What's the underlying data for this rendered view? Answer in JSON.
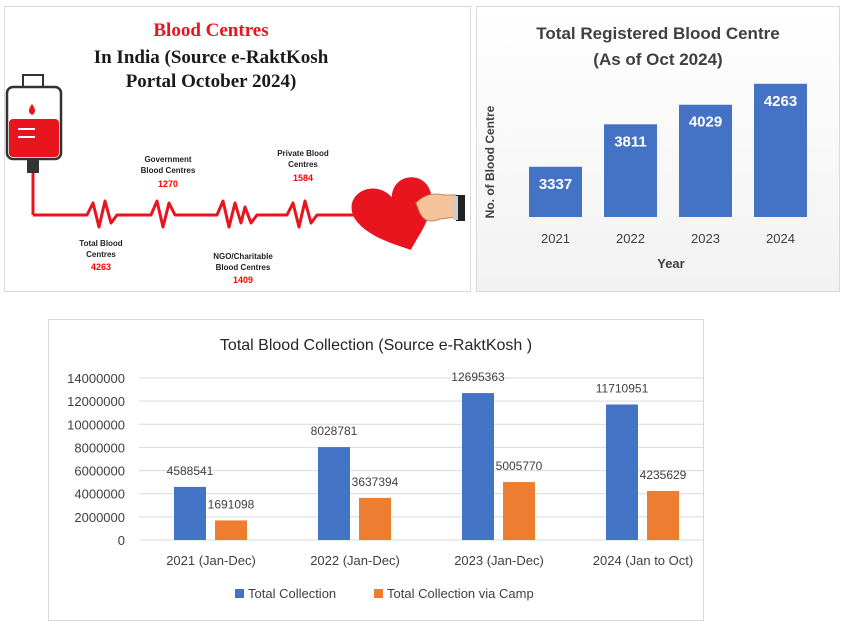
{
  "infographic": {
    "title_line1": "Blood Centres",
    "title_line2": "In India (Source e-RaktKosh",
    "title_line3": "Portal October 2024)",
    "items": [
      {
        "label_line1": "Total Blood",
        "label_line2": "Centres",
        "value": "4263"
      },
      {
        "label_line1": "Government",
        "label_line2": "Blood Centres",
        "value": "1270"
      },
      {
        "label_line1": "NGO/Charitable",
        "label_line2": "Blood Centres",
        "value": "1409"
      },
      {
        "label_line1": "Private Blood",
        "label_line2": "Centres",
        "value": "1584"
      }
    ],
    "colors": {
      "title_red": "#e8141e",
      "value_red": "#ff0000",
      "blood": "#e8141e"
    }
  },
  "chart_data": [
    {
      "type": "bar",
      "title_line1": "Total Registered Blood Centre",
      "title_line2": "(As of Oct 2024)",
      "xlabel": "Year",
      "ylabel": "No. of Blood Centre",
      "categories": [
        "2021",
        "2022",
        "2023",
        "2024"
      ],
      "values": [
        3337,
        3811,
        4029,
        4263
      ],
      "data_labels": [
        "3337",
        "3811",
        "4029",
        "4263"
      ],
      "grid": false,
      "color": "#4472c4"
    },
    {
      "type": "bar",
      "title": "Total Blood Collection (Source e-RaktKosh )",
      "categories": [
        "2021 (Jan-Dec)",
        "2022 (Jan-Dec)",
        "2023 (Jan-Dec)",
        "2024 (Jan to Oct)"
      ],
      "series": [
        {
          "name": "Total Collection",
          "values": [
            4588541,
            8028781,
            12695363,
            11710951
          ],
          "labels": [
            "4588541",
            "8028781",
            "12695363",
            "11710951"
          ],
          "color": "#4472c4"
        },
        {
          "name": "Total Collection via Camp",
          "values": [
            1691098,
            3637394,
            5005770,
            4235629
          ],
          "labels": [
            "1691098",
            "3637394",
            "5005770",
            "4235629"
          ],
          "color": "#ed7d31"
        }
      ],
      "ylim": [
        0,
        14000000
      ],
      "yticks": [
        "0",
        "2000000",
        "4000000",
        "6000000",
        "8000000",
        "10000000",
        "12000000",
        "14000000"
      ],
      "grid": true,
      "legend": "bottom"
    }
  ]
}
